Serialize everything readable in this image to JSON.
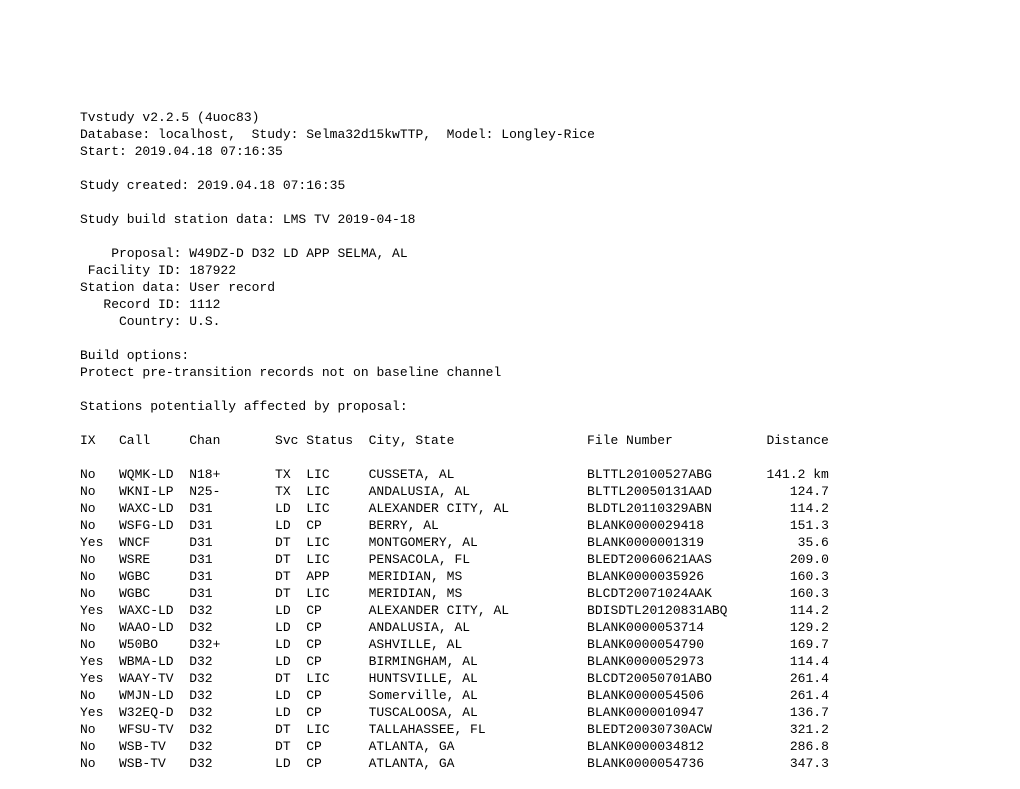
{
  "font_family": "Courier New, monospace",
  "font_size_pt": 10,
  "text_color": "#000000",
  "background_color": "#ffffff",
  "header": {
    "line1": "Tvstudy v2.2.5 (4uoc83)",
    "line2": "Database: localhost,  Study: Selma32d15kwTTP,  Model: Longley-Rice",
    "line3": "Start: 2019.04.18 07:16:35",
    "created": "Study created: 2019.04.18 07:16:35",
    "build_data": "Study build station data: LMS TV 2019-04-18"
  },
  "proposal": {
    "proposal": "    Proposal: W49DZ-D D32 LD APP SELMA, AL",
    "facility_id": " Facility ID: 187922",
    "station_data": "Station data: User record",
    "record_id": "   Record ID: 1112",
    "country": "     Country: U.S."
  },
  "build_options": {
    "title": "Build options:",
    "opt1": "Protect pre-transition records not on baseline channel"
  },
  "affected_title": "Stations potentially affected by proposal:",
  "columns": {
    "ix": "IX",
    "call": "Call",
    "chan": "Chan",
    "svc": "Svc",
    "status": "Status",
    "city": "City, State",
    "file": "File Number",
    "dist": "Distance"
  },
  "rows": [
    {
      "ix": "No",
      "call": "WQMK-LD",
      "chan": "N18+",
      "svc": "TX",
      "status": "LIC",
      "city": "CUSSETA, AL",
      "file": "BLTTL20100527ABG",
      "dist": "141.2 km"
    },
    {
      "ix": "No",
      "call": "WKNI-LP",
      "chan": "N25-",
      "svc": "TX",
      "status": "LIC",
      "city": "ANDALUSIA, AL",
      "file": "BLTTL20050131AAD",
      "dist": "124.7"
    },
    {
      "ix": "No",
      "call": "WAXC-LD",
      "chan": "D31",
      "svc": "LD",
      "status": "LIC",
      "city": "ALEXANDER CITY, AL",
      "file": "BLDTL20110329ABN",
      "dist": "114.2"
    },
    {
      "ix": "No",
      "call": "WSFG-LD",
      "chan": "D31",
      "svc": "LD",
      "status": "CP",
      "city": "BERRY, AL",
      "file": "BLANK0000029418",
      "dist": "151.3"
    },
    {
      "ix": "Yes",
      "call": "WNCF",
      "chan": "D31",
      "svc": "DT",
      "status": "LIC",
      "city": "MONTGOMERY, AL",
      "file": "BLANK0000001319",
      "dist": "35.6"
    },
    {
      "ix": "No",
      "call": "WSRE",
      "chan": "D31",
      "svc": "DT",
      "status": "LIC",
      "city": "PENSACOLA, FL",
      "file": "BLEDT20060621AAS",
      "dist": "209.0"
    },
    {
      "ix": "No",
      "call": "WGBC",
      "chan": "D31",
      "svc": "DT",
      "status": "APP",
      "city": "MERIDIAN, MS",
      "file": "BLANK0000035926",
      "dist": "160.3"
    },
    {
      "ix": "No",
      "call": "WGBC",
      "chan": "D31",
      "svc": "DT",
      "status": "LIC",
      "city": "MERIDIAN, MS",
      "file": "BLCDT20071024AAK",
      "dist": "160.3"
    },
    {
      "ix": "Yes",
      "call": "WAXC-LD",
      "chan": "D32",
      "svc": "LD",
      "status": "CP",
      "city": "ALEXANDER CITY, AL",
      "file": "BDISDTL20120831ABQ",
      "dist": "114.2"
    },
    {
      "ix": "No",
      "call": "WAAO-LD",
      "chan": "D32",
      "svc": "LD",
      "status": "CP",
      "city": "ANDALUSIA, AL",
      "file": "BLANK0000053714",
      "dist": "129.2"
    },
    {
      "ix": "No",
      "call": "W50BO",
      "chan": "D32+",
      "svc": "LD",
      "status": "CP",
      "city": "ASHVILLE, AL",
      "file": "BLANK0000054790",
      "dist": "169.7"
    },
    {
      "ix": "Yes",
      "call": "WBMA-LD",
      "chan": "D32",
      "svc": "LD",
      "status": "CP",
      "city": "BIRMINGHAM, AL",
      "file": "BLANK0000052973",
      "dist": "114.4"
    },
    {
      "ix": "Yes",
      "call": "WAAY-TV",
      "chan": "D32",
      "svc": "DT",
      "status": "LIC",
      "city": "HUNTSVILLE, AL",
      "file": "BLCDT20050701ABO",
      "dist": "261.4"
    },
    {
      "ix": "No",
      "call": "WMJN-LD",
      "chan": "D32",
      "svc": "LD",
      "status": "CP",
      "city": "Somerville, AL",
      "file": "BLANK0000054506",
      "dist": "261.4"
    },
    {
      "ix": "Yes",
      "call": "W32EQ-D",
      "chan": "D32",
      "svc": "LD",
      "status": "CP",
      "city": "TUSCALOOSA, AL",
      "file": "BLANK0000010947",
      "dist": "136.7"
    },
    {
      "ix": "No",
      "call": "WFSU-TV",
      "chan": "D32",
      "svc": "DT",
      "status": "LIC",
      "city": "TALLAHASSEE, FL",
      "file": "BLEDT20030730ACW",
      "dist": "321.2"
    },
    {
      "ix": "No",
      "call": "WSB-TV",
      "chan": "D32",
      "svc": "DT",
      "status": "CP",
      "city": "ATLANTA, GA",
      "file": "BLANK0000034812",
      "dist": "286.8"
    },
    {
      "ix": "No",
      "call": "WSB-TV",
      "chan": "D32",
      "svc": "LD",
      "status": "CP",
      "city": "ATLANTA, GA",
      "file": "BLANK0000054736",
      "dist": "347.3"
    }
  ]
}
